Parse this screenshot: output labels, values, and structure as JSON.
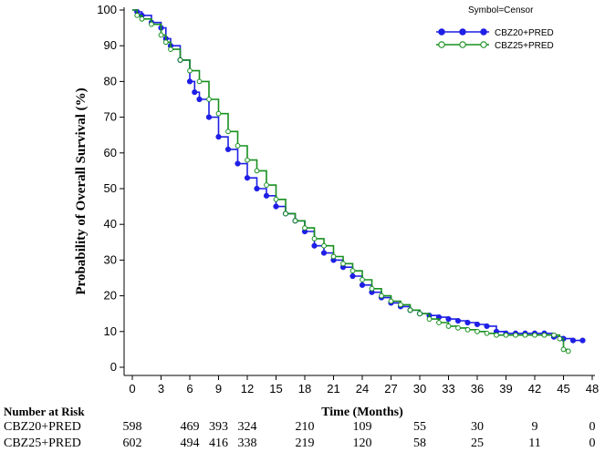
{
  "chart_data": {
    "type": "line",
    "title": "",
    "xlabel": "Time (Months)",
    "ylabel": "Probability of Overall Survival (%)",
    "xlim": [
      0,
      48
    ],
    "ylim": [
      0,
      100
    ],
    "x_ticks": [
      0,
      3,
      6,
      9,
      12,
      15,
      18,
      21,
      24,
      27,
      30,
      33,
      36,
      39,
      42,
      45,
      48
    ],
    "y_ticks": [
      0,
      10,
      20,
      30,
      40,
      50,
      60,
      70,
      80,
      90,
      100
    ],
    "legend_title": "Symbol=Censor",
    "legend_position": "top-right",
    "series": [
      {
        "name": "CBZ20+PRED",
        "color": "#1f1fe6",
        "marker": "filled-circle",
        "points": [
          [
            0,
            100
          ],
          [
            0.5,
            99.5
          ],
          [
            1,
            98.5
          ],
          [
            2,
            96.5
          ],
          [
            3,
            95
          ],
          [
            3.5,
            92
          ],
          [
            4,
            90
          ],
          [
            5,
            86
          ],
          [
            6,
            80
          ],
          [
            6.5,
            77
          ],
          [
            7,
            75
          ],
          [
            8,
            70
          ],
          [
            9,
            64.5
          ],
          [
            10,
            61
          ],
          [
            11,
            57
          ],
          [
            12,
            53
          ],
          [
            13,
            50
          ],
          [
            14,
            48
          ],
          [
            15,
            45
          ],
          [
            16,
            43
          ],
          [
            17,
            41
          ],
          [
            18,
            38
          ],
          [
            19,
            34
          ],
          [
            20,
            32
          ],
          [
            21,
            30
          ],
          [
            22,
            28
          ],
          [
            23,
            25.5
          ],
          [
            24,
            23
          ],
          [
            25,
            21
          ],
          [
            26,
            19.5
          ],
          [
            27,
            18
          ],
          [
            28,
            17
          ],
          [
            29,
            16
          ],
          [
            30,
            15
          ],
          [
            31,
            14.5
          ],
          [
            32,
            14
          ],
          [
            33,
            13.5
          ],
          [
            34,
            13
          ],
          [
            35,
            12.5
          ],
          [
            36,
            12
          ],
          [
            37,
            11.5
          ],
          [
            38,
            10
          ],
          [
            39,
            9.5
          ],
          [
            40,
            9.5
          ],
          [
            41,
            9.5
          ],
          [
            42,
            9.5
          ],
          [
            43,
            9.5
          ],
          [
            44,
            8.5
          ],
          [
            45,
            8
          ],
          [
            46,
            7.5
          ],
          [
            47,
            7.5
          ]
        ]
      },
      {
        "name": "CBZ25+PRED",
        "color": "#17901f",
        "marker": "open-circle",
        "points": [
          [
            0,
            100
          ],
          [
            0.5,
            98.5
          ],
          [
            1,
            97.5
          ],
          [
            2,
            96
          ],
          [
            3,
            93
          ],
          [
            3.5,
            91
          ],
          [
            4,
            89
          ],
          [
            5,
            86
          ],
          [
            6,
            83
          ],
          [
            7,
            80
          ],
          [
            8,
            75
          ],
          [
            9,
            71
          ],
          [
            10,
            66
          ],
          [
            11,
            62
          ],
          [
            12,
            58
          ],
          [
            13,
            55
          ],
          [
            14,
            51
          ],
          [
            15,
            47
          ],
          [
            16,
            43
          ],
          [
            17,
            41
          ],
          [
            18,
            39
          ],
          [
            19,
            36
          ],
          [
            20,
            34
          ],
          [
            21,
            31
          ],
          [
            22,
            29
          ],
          [
            23,
            27
          ],
          [
            24,
            24.5
          ],
          [
            25,
            22
          ],
          [
            26,
            20
          ],
          [
            27,
            18.5
          ],
          [
            28,
            17.5
          ],
          [
            29,
            16
          ],
          [
            30,
            15
          ],
          [
            31,
            13.5
          ],
          [
            32,
            12.5
          ],
          [
            33,
            11.5
          ],
          [
            34,
            11
          ],
          [
            35,
            10.5
          ],
          [
            36,
            10
          ],
          [
            37,
            9.5
          ],
          [
            38,
            9
          ],
          [
            39,
            9
          ],
          [
            40,
            9
          ],
          [
            41,
            9
          ],
          [
            42,
            9
          ],
          [
            43,
            9
          ],
          [
            44,
            9
          ],
          [
            44.6,
            8
          ],
          [
            45,
            5
          ],
          [
            45.5,
            4.5
          ]
        ]
      }
    ]
  },
  "risk_table": {
    "title": "Number at Risk",
    "times": [
      0,
      6,
      9,
      12,
      18,
      24,
      30,
      36,
      42,
      48
    ],
    "rows": [
      {
        "label": "CBZ20+PRED",
        "values": [
          "598",
          "469",
          "393",
          "324",
          "210",
          "109",
          "55",
          "30",
          "9",
          "0"
        ]
      },
      {
        "label": "CBZ25+PRED",
        "values": [
          "602",
          "494",
          "416",
          "338",
          "219",
          "120",
          "58",
          "25",
          "11",
          "0"
        ]
      }
    ]
  }
}
